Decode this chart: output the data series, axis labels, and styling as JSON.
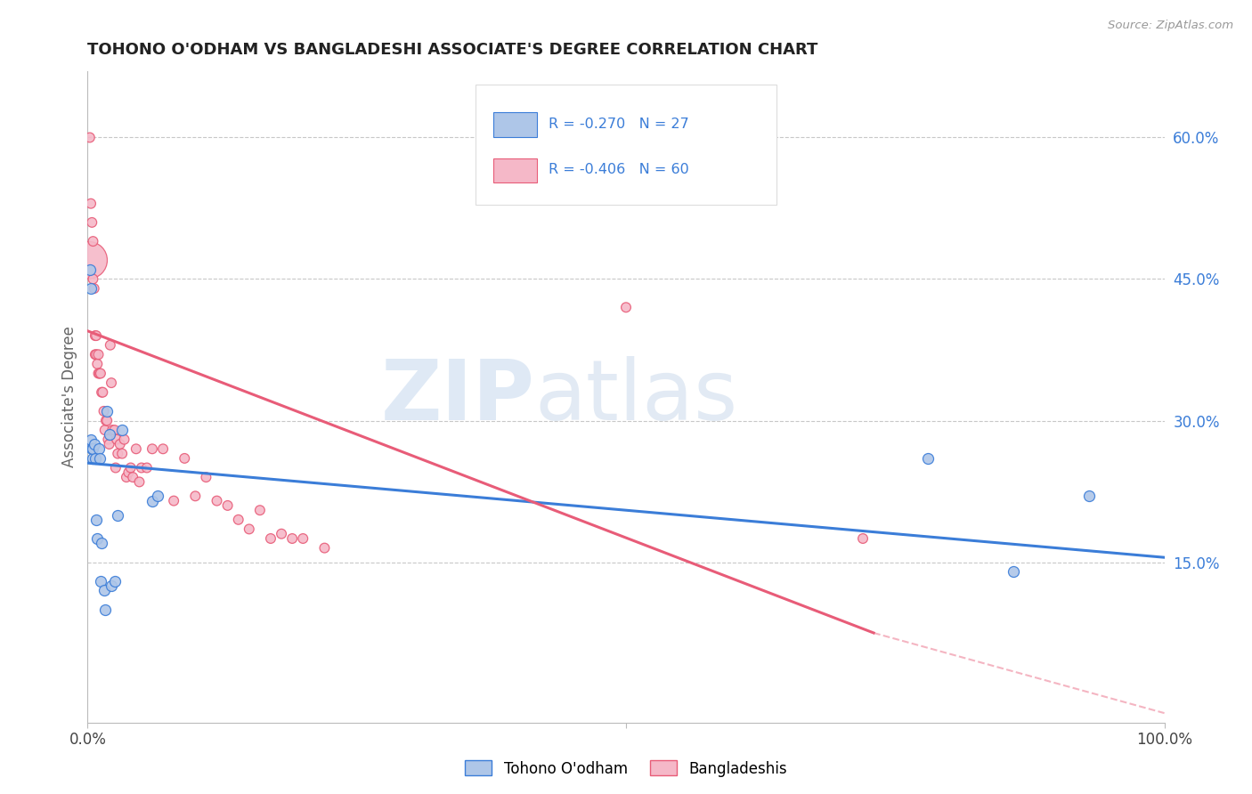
{
  "title": "TOHONO O'ODHAM VS BANGLADESHI ASSOCIATE'S DEGREE CORRELATION CHART",
  "source": "Source: ZipAtlas.com",
  "ylabel": "Associate's Degree",
  "right_yticks": [
    "15.0%",
    "30.0%",
    "45.0%",
    "60.0%"
  ],
  "right_ytick_vals": [
    0.15,
    0.3,
    0.45,
    0.6
  ],
  "legend_blue_label": "Tohono O'odham",
  "legend_pink_label": "Bangladeshis",
  "legend_r_blue": "R = -0.270",
  "legend_n_blue": "N = 27",
  "legend_r_pink": "R = -0.406",
  "legend_n_pink": "N = 60",
  "watermark_zip": "ZIP",
  "watermark_atlas": "atlas",
  "blue_color": "#aec6e8",
  "pink_color": "#f5b8c8",
  "line_blue": "#3b7dd8",
  "line_pink": "#e85c78",
  "text_blue": "#3b7dd8",
  "background": "#ffffff",
  "grid_color": "#c8c8c8",
  "tohono_x": [
    0.002,
    0.003,
    0.003,
    0.004,
    0.005,
    0.005,
    0.006,
    0.007,
    0.008,
    0.009,
    0.01,
    0.011,
    0.012,
    0.013,
    0.015,
    0.016,
    0.018,
    0.02,
    0.022,
    0.025,
    0.028,
    0.032,
    0.06,
    0.065,
    0.78,
    0.86,
    0.93
  ],
  "tohono_y": [
    0.46,
    0.44,
    0.28,
    0.27,
    0.26,
    0.27,
    0.275,
    0.26,
    0.195,
    0.175,
    0.27,
    0.26,
    0.13,
    0.17,
    0.12,
    0.1,
    0.31,
    0.285,
    0.125,
    0.13,
    0.2,
    0.29,
    0.215,
    0.22,
    0.26,
    0.14,
    0.22
  ],
  "bangladeshi_x": [
    0.001,
    0.002,
    0.003,
    0.004,
    0.005,
    0.005,
    0.006,
    0.007,
    0.007,
    0.008,
    0.008,
    0.009,
    0.01,
    0.01,
    0.011,
    0.012,
    0.013,
    0.014,
    0.015,
    0.016,
    0.017,
    0.018,
    0.019,
    0.02,
    0.021,
    0.022,
    0.023,
    0.025,
    0.026,
    0.027,
    0.028,
    0.03,
    0.032,
    0.034,
    0.036,
    0.038,
    0.04,
    0.042,
    0.045,
    0.048,
    0.05,
    0.055,
    0.06,
    0.07,
    0.08,
    0.09,
    0.1,
    0.11,
    0.12,
    0.13,
    0.14,
    0.15,
    0.16,
    0.17,
    0.18,
    0.19,
    0.2,
    0.22,
    0.5,
    0.72
  ],
  "bangladeshi_y": [
    0.47,
    0.6,
    0.53,
    0.51,
    0.49,
    0.45,
    0.44,
    0.39,
    0.37,
    0.39,
    0.37,
    0.36,
    0.37,
    0.35,
    0.35,
    0.35,
    0.33,
    0.33,
    0.31,
    0.29,
    0.3,
    0.3,
    0.28,
    0.275,
    0.38,
    0.34,
    0.29,
    0.29,
    0.25,
    0.28,
    0.265,
    0.275,
    0.265,
    0.28,
    0.24,
    0.245,
    0.25,
    0.24,
    0.27,
    0.235,
    0.25,
    0.25,
    0.27,
    0.27,
    0.215,
    0.26,
    0.22,
    0.24,
    0.215,
    0.21,
    0.195,
    0.185,
    0.205,
    0.175,
    0.18,
    0.175,
    0.175,
    0.165,
    0.42,
    0.175
  ],
  "bangladeshi_sizes": [
    900,
    60,
    60,
    60,
    60,
    60,
    60,
    60,
    60,
    60,
    60,
    60,
    60,
    60,
    60,
    60,
    60,
    60,
    60,
    60,
    60,
    60,
    60,
    60,
    60,
    60,
    60,
    60,
    60,
    60,
    60,
    60,
    60,
    60,
    60,
    60,
    60,
    60,
    60,
    60,
    60,
    60,
    60,
    60,
    60,
    60,
    60,
    60,
    60,
    60,
    60,
    60,
    60,
    60,
    60,
    60,
    60,
    60,
    60,
    60
  ],
  "xlim": [
    0.0,
    1.0
  ],
  "ylim": [
    -0.02,
    0.67
  ],
  "blue_trend": [
    0.0,
    1.0,
    0.255,
    0.155
  ],
  "pink_trend_solid": [
    0.0,
    0.73,
    0.395,
    0.075
  ],
  "pink_trend_dash": [
    0.73,
    1.0,
    0.075,
    -0.01
  ],
  "tohono_dot_size": 75
}
